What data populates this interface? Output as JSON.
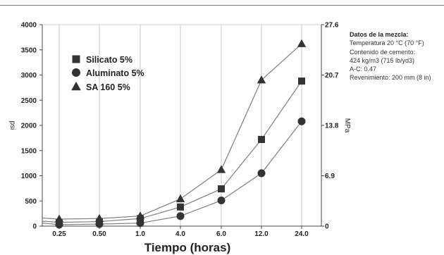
{
  "chart_data": {
    "type": "line",
    "categories": [
      "0.25",
      "0.50",
      "1.0",
      "4.0",
      "6.0",
      "12.0",
      "24.0"
    ],
    "xlabel": "Tiempo (horas)",
    "ylabel": "psi",
    "ylabel_right": "MPa",
    "ylim": [
      0,
      4000
    ],
    "y_ticks": [
      "0",
      "500",
      "1000",
      "1500",
      "2000",
      "2500",
      "3000",
      "3500",
      "4000"
    ],
    "y_right_ticks": [
      "0",
      "6.9",
      "13.8",
      "20.7",
      "27.6"
    ],
    "grid": "vertical",
    "legend_position": "top-left",
    "series": [
      {
        "name": "Silicato 5%",
        "marker": "square",
        "start": 100,
        "values": [
          75,
          90,
          150,
          380,
          740,
          1720,
          2880
        ]
      },
      {
        "name": "Aluminato 5%",
        "marker": "circle",
        "start": 60,
        "values": [
          30,
          40,
          60,
          200,
          510,
          1050,
          2080
        ]
      },
      {
        "name": "SA 160 5%",
        "marker": "triangle",
        "start": 160,
        "values": [
          140,
          150,
          200,
          540,
          1120,
          2900,
          3620
        ]
      }
    ]
  },
  "notes": {
    "title": "Datos de la mezcla:",
    "lines": [
      "Temperatura 20 °C (70 °F)",
      "Contenido de cemento:",
      "424 kg/m3 (715 lb/yd3)",
      "A-C: 0.47",
      "Revenimiento: 200 mm (8 in)"
    ]
  },
  "colors": {
    "line": "#7f7f7f",
    "marker": "#333333",
    "axis": "#444444",
    "grid": "#bdbdbd"
  }
}
